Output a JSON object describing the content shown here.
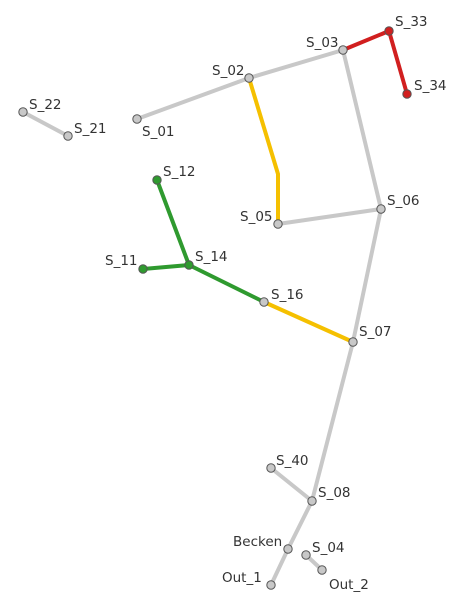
{
  "colors": {
    "gray": "#c8c8c8",
    "yellow": "#f5c000",
    "green": "#2f9a2f",
    "red": "#d11f1f",
    "node_gray": "#c8c8c8",
    "node_green": "#2f9a2f",
    "node_red": "#d11f1f"
  },
  "nodes": {
    "S_22": "S_22",
    "S_21": "S_21",
    "S_01": "S_01",
    "S_02": "S_02",
    "S_03": "S_03",
    "S_33": "S_33",
    "S_34": "S_34",
    "S_12": "S_12",
    "S_05": "S_05",
    "S_06": "S_06",
    "S_11": "S_11",
    "S_14": "S_14",
    "S_16": "S_16",
    "S_07": "S_07",
    "S_40": "S_40",
    "S_08": "S_08",
    "Becken": "Becken",
    "S_04": "S_04",
    "Out_1": "Out_1",
    "Out_2": "Out_2"
  },
  "edges": [
    {
      "from": "S_22",
      "to": "S_21",
      "color": "gray"
    },
    {
      "from": "S_01",
      "to": "S_02",
      "color": "gray"
    },
    {
      "from": "S_02",
      "to": "S_03",
      "color": "gray"
    },
    {
      "from": "S_03",
      "to": "S_33",
      "color": "red"
    },
    {
      "from": "S_33",
      "to": "S_34",
      "color": "red"
    },
    {
      "from": "S_02",
      "to": "S_05",
      "color": "yellow"
    },
    {
      "from": "S_05",
      "to": "S_06",
      "color": "gray"
    },
    {
      "from": "S_03",
      "to": "S_06",
      "color": "gray"
    },
    {
      "from": "S_06",
      "to": "S_07",
      "color": "gray"
    },
    {
      "from": "S_12",
      "to": "S_14",
      "color": "green"
    },
    {
      "from": "S_11",
      "to": "S_14",
      "color": "green"
    },
    {
      "from": "S_14",
      "to": "S_16",
      "color": "green"
    },
    {
      "from": "S_16",
      "to": "S_07",
      "color": "yellow"
    },
    {
      "from": "S_07",
      "to": "S_08",
      "color": "gray"
    },
    {
      "from": "S_40",
      "to": "S_08",
      "color": "gray"
    },
    {
      "from": "S_08",
      "to": "Becken",
      "color": "gray"
    },
    {
      "from": "Becken",
      "to": "Out_1",
      "color": "gray"
    },
    {
      "from": "S_04",
      "to": "Out_2",
      "color": "gray"
    }
  ]
}
